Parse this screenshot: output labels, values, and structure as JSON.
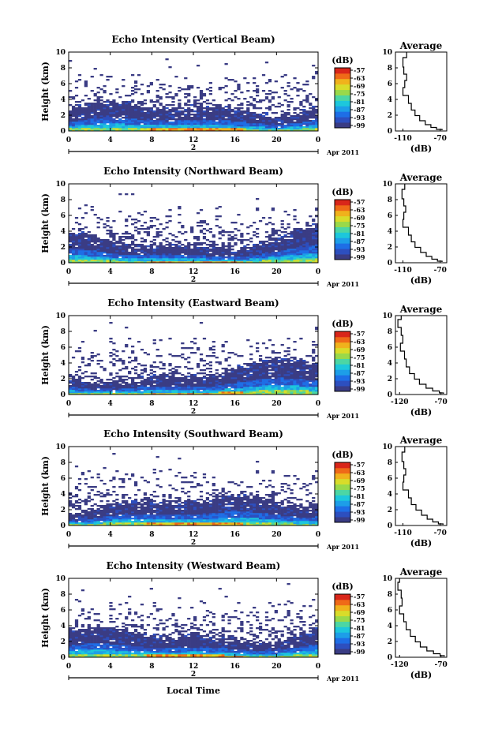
{
  "figure": {
    "xlabel": "Local Time",
    "date_label": "Apr 2011",
    "day_label": "2"
  },
  "colors": {
    "colormap": [
      "#3a3c84",
      "#2d4fbf",
      "#1e6ee6",
      "#1d9ee8",
      "#1dc7dc",
      "#4cd6a4",
      "#9ad94a",
      "#d9dc2a",
      "#f0b21c",
      "#ef6a18",
      "#d9261a"
    ]
  },
  "chart_data": [
    {
      "type": "heatmap",
      "title": "Echo Intensity (Vertical Beam)",
      "ylabel": "Height (km)",
      "x_ticks": [
        "0",
        "4",
        "8",
        "12",
        "16",
        "20",
        "0"
      ],
      "y_ticks": [
        "0",
        "2",
        "4",
        "6",
        "8",
        "10"
      ],
      "xlim": [
        0,
        24
      ],
      "ylim": [
        0,
        10
      ],
      "colorbar_unit": "(dB)",
      "colorbar_ticks": [
        "-57",
        "-63",
        "-69",
        "-75",
        "-81",
        "-87",
        "-93",
        "-99"
      ],
      "profile": {
        "title": "Average",
        "xlabel": "(dB)",
        "x_ticks": [
          "-110",
          "-70"
        ],
        "xlim": [
          -118,
          -63
        ],
        "ylim": [
          0,
          10
        ],
        "y_ticks": [
          "0",
          "2",
          "4",
          "6",
          "8",
          "10"
        ],
        "x": [
          -106,
          -110,
          -109,
          -106,
          -108,
          -110,
          -104,
          -101,
          -97,
          -92,
          -86,
          -80,
          -74,
          -68
        ],
        "y": [
          10,
          8.6,
          7.6,
          6.8,
          6.0,
          5.0,
          4.0,
          3.0,
          2.3,
          1.6,
          1.0,
          0.6,
          0.3,
          0.1
        ]
      }
    },
    {
      "type": "heatmap",
      "title": "Echo Intensity (Northward Beam)",
      "ylabel": "Height (km)",
      "x_ticks": [
        "0",
        "4",
        "8",
        "12",
        "16",
        "20",
        "0"
      ],
      "y_ticks": [
        "0",
        "2",
        "4",
        "6",
        "8",
        "10"
      ],
      "xlim": [
        0,
        24
      ],
      "ylim": [
        0,
        10
      ],
      "colorbar_unit": "(dB)",
      "colorbar_ticks": [
        "-57",
        "-63",
        "-69",
        "-75",
        "-81",
        "-87",
        "-93",
        "-99"
      ],
      "profile": {
        "title": "Average",
        "xlabel": "(dB)",
        "x_ticks": [
          "-110",
          "-70"
        ],
        "xlim": [
          -118,
          -63
        ],
        "ylim": [
          0,
          10
        ],
        "y_ticks": [
          "0",
          "2",
          "4",
          "6",
          "8",
          "10"
        ],
        "x": [
          -108,
          -111,
          -109,
          -107,
          -109,
          -110,
          -104,
          -101,
          -97,
          -91,
          -85,
          -79,
          -73,
          -68
        ],
        "y": [
          10,
          8.6,
          7.6,
          6.8,
          6.0,
          5.0,
          4.0,
          3.0,
          2.3,
          1.6,
          1.0,
          0.6,
          0.3,
          0.1
        ]
      }
    },
    {
      "type": "heatmap",
      "title": "Echo Intensity (Eastward Beam)",
      "ylabel": "Height (km)",
      "x_ticks": [
        "0",
        "4",
        "8",
        "12",
        "16",
        "20",
        "0"
      ],
      "y_ticks": [
        "0",
        "2",
        "4",
        "6",
        "8",
        "10"
      ],
      "xlim": [
        0,
        24
      ],
      "ylim": [
        0,
        10
      ],
      "colorbar_unit": "(dB)",
      "colorbar_ticks": [
        "-57",
        "-63",
        "-69",
        "-75",
        "-81",
        "-87",
        "-93",
        "-99"
      ],
      "profile": {
        "title": "Average",
        "xlabel": "(dB)",
        "x_ticks": [
          "-120",
          "-70"
        ],
        "xlim": [
          -125,
          -63
        ],
        "ylim": [
          0,
          10
        ],
        "y_ticks": [
          "0",
          "2",
          "4",
          "6",
          "8",
          "10"
        ],
        "x": [
          -118,
          -122,
          -118,
          -116,
          -119,
          -114,
          -112,
          -108,
          -102,
          -96,
          -88,
          -80,
          -72,
          -67
        ],
        "y": [
          10,
          9.0,
          8.0,
          7.0,
          6.0,
          5.0,
          4.0,
          3.0,
          2.3,
          1.6,
          1.0,
          0.6,
          0.3,
          0.1
        ]
      }
    },
    {
      "type": "heatmap",
      "title": "Echo Intensity (Southward Beam)",
      "ylabel": "Height (km)",
      "x_ticks": [
        "0",
        "4",
        "8",
        "12",
        "16",
        "20",
        "0"
      ],
      "y_ticks": [
        "0",
        "2",
        "4",
        "6",
        "8",
        "10"
      ],
      "xlim": [
        0,
        24
      ],
      "ylim": [
        0,
        10
      ],
      "colorbar_unit": "(dB)",
      "colorbar_ticks": [
        "-57",
        "-63",
        "-69",
        "-75",
        "-81",
        "-87",
        "-93",
        "-99"
      ],
      "profile": {
        "title": "Average",
        "xlabel": "(dB)",
        "x_ticks": [
          "-110",
          "-70"
        ],
        "xlim": [
          -118,
          -63
        ],
        "ylim": [
          0,
          10
        ],
        "y_ticks": [
          "0",
          "2",
          "4",
          "6",
          "8",
          "10"
        ],
        "x": [
          -108,
          -111,
          -109,
          -107,
          -109,
          -110,
          -104,
          -101,
          -96,
          -90,
          -84,
          -78,
          -72,
          -67
        ],
        "y": [
          10,
          8.6,
          7.6,
          6.8,
          6.0,
          5.0,
          4.0,
          3.0,
          2.3,
          1.6,
          1.0,
          0.6,
          0.3,
          0.1
        ]
      }
    },
    {
      "type": "heatmap",
      "title": "Echo Intensity (Westward Beam)",
      "ylabel": "Height (km)",
      "x_ticks": [
        "0",
        "4",
        "8",
        "12",
        "16",
        "20",
        "0"
      ],
      "y_ticks": [
        "0",
        "2",
        "4",
        "6",
        "8",
        "10"
      ],
      "xlim": [
        0,
        24
      ],
      "ylim": [
        0,
        10
      ],
      "colorbar_unit": "(dB)",
      "colorbar_ticks": [
        "-57",
        "-63",
        "-69",
        "-75",
        "-81",
        "-87",
        "-93",
        "-99"
      ],
      "profile": {
        "title": "Average",
        "xlabel": "(dB)",
        "x_ticks": [
          "-120",
          "-70"
        ],
        "xlim": [
          -125,
          -63
        ],
        "ylim": [
          0,
          10
        ],
        "y_ticks": [
          "0",
          "2",
          "4",
          "6",
          "8",
          "10"
        ],
        "x": [
          -120,
          -122,
          -118,
          -117,
          -120,
          -115,
          -112,
          -107,
          -101,
          -95,
          -87,
          -79,
          -71,
          -66
        ],
        "y": [
          10,
          9.0,
          8.0,
          7.0,
          6.0,
          5.0,
          4.0,
          3.0,
          2.3,
          1.6,
          1.0,
          0.6,
          0.3,
          0.1
        ]
      }
    }
  ]
}
